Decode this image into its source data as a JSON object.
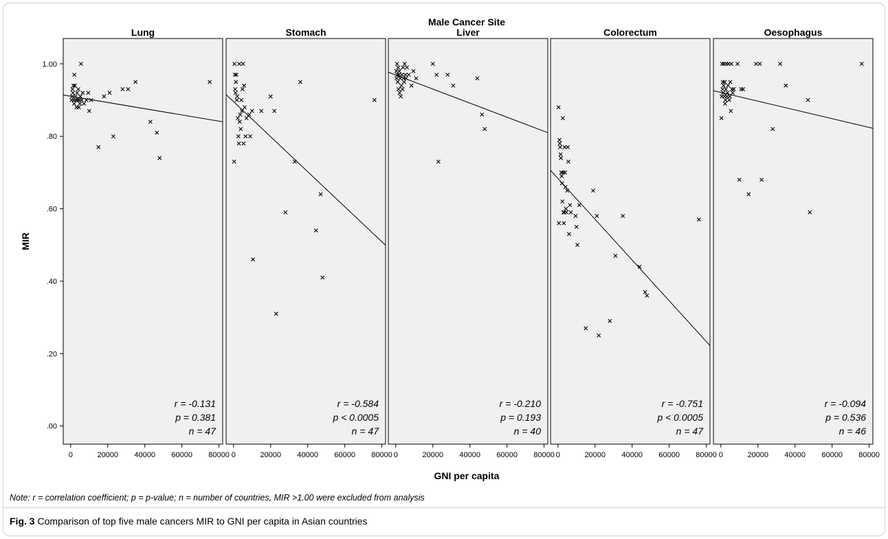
{
  "figure": {
    "label": "Fig. 3",
    "caption": "Comparison of top five male cancers MIR to GNI per capita in Asian countries",
    "note": "Note: r = correlation coefficient; p = p-value; n = number of countries, MIR >1.00 were excluded from analysis"
  },
  "colors": {
    "panel_bg": "#f0f0f0",
    "marker": "#000000",
    "line": "#000000"
  },
  "chart_data": {
    "type": "scatter",
    "title": "Male Cancer Site",
    "xlabel": "GNI per capita",
    "ylabel": "MIR",
    "xlim": [
      -4000,
      82000
    ],
    "ylim": [
      -0.05,
      1.07
    ],
    "x_ticks": [
      0,
      20000,
      40000,
      60000,
      80000
    ],
    "x_tick_labels": [
      "0",
      "20000",
      "40000",
      "60000",
      "80000"
    ],
    "y_ticks": [
      0,
      0.2,
      0.4,
      0.6,
      0.8,
      1.0
    ],
    "y_tick_labels": [
      ".00",
      ".20",
      ".40",
      ".60",
      ".80",
      "1.00"
    ],
    "marker": "x",
    "panels": [
      {
        "name": "Lung",
        "fit_line": [
          [
            -4000,
            0.914
          ],
          [
            82000,
            0.84
          ]
        ],
        "stats": [
          "r = -0.131",
          "p = 0.381",
          "n = 47"
        ],
        "points": [
          [
            500,
            0.9
          ],
          [
            800,
            0.91
          ],
          [
            1000,
            0.93
          ],
          [
            1200,
            0.92
          ],
          [
            1500,
            0.94
          ],
          [
            1700,
            0.9
          ],
          [
            1900,
            0.89
          ],
          [
            2000,
            0.97
          ],
          [
            2300,
            0.94
          ],
          [
            2600,
            0.91
          ],
          [
            2900,
            0.9
          ],
          [
            3200,
            0.88
          ],
          [
            3500,
            0.92
          ],
          [
            3800,
            0.9
          ],
          [
            4100,
            0.93
          ],
          [
            4400,
            0.88
          ],
          [
            4700,
            0.9
          ],
          [
            5000,
            0.89
          ],
          [
            5300,
            0.91
          ],
          [
            5600,
            1.0
          ],
          [
            6000,
            0.9
          ],
          [
            6500,
            0.92
          ],
          [
            7200,
            0.89
          ],
          [
            8500,
            0.9
          ],
          [
            9500,
            0.92
          ],
          [
            10000,
            0.87
          ],
          [
            11000,
            0.9
          ],
          [
            15000,
            0.77
          ],
          [
            18000,
            0.91
          ],
          [
            21000,
            0.92
          ],
          [
            23000,
            0.8
          ],
          [
            28000,
            0.93
          ],
          [
            31000,
            0.93
          ],
          [
            35000,
            0.95
          ],
          [
            43000,
            0.84
          ],
          [
            46500,
            0.81
          ],
          [
            48000,
            0.74
          ],
          [
            75000,
            0.95
          ]
        ]
      },
      {
        "name": "Stomach",
        "fit_line": [
          [
            -4000,
            0.915
          ],
          [
            82000,
            0.499
          ]
        ],
        "stats": [
          "r = -0.584",
          "p < 0.0005",
          "n = 47"
        ],
        "points": [
          [
            300,
            0.73
          ],
          [
            500,
            1.0
          ],
          [
            700,
            0.97
          ],
          [
            900,
            0.93
          ],
          [
            1100,
            0.92
          ],
          [
            1300,
            0.95
          ],
          [
            1500,
            0.97
          ],
          [
            1800,
            0.9
          ],
          [
            2000,
            0.91
          ],
          [
            2300,
            0.85
          ],
          [
            2600,
            0.8
          ],
          [
            2900,
            0.78
          ],
          [
            3100,
            1.0
          ],
          [
            3300,
            0.84
          ],
          [
            3600,
            0.86
          ],
          [
            3900,
            0.82
          ],
          [
            4200,
            0.9
          ],
          [
            4500,
            0.87
          ],
          [
            4800,
            0.93
          ],
          [
            5100,
            1.0
          ],
          [
            5400,
            0.78
          ],
          [
            5700,
            0.94
          ],
          [
            6000,
            0.88
          ],
          [
            6500,
            0.8
          ],
          [
            7000,
            0.85
          ],
          [
            8500,
            0.86
          ],
          [
            9000,
            0.8
          ],
          [
            10000,
            0.87
          ],
          [
            10500,
            0.46
          ],
          [
            15000,
            0.87
          ],
          [
            20000,
            0.91
          ],
          [
            22000,
            0.87
          ],
          [
            23000,
            0.31
          ],
          [
            28000,
            0.59
          ],
          [
            33000,
            0.73
          ],
          [
            36000,
            0.95
          ],
          [
            44500,
            0.54
          ],
          [
            47000,
            0.64
          ],
          [
            48000,
            0.41
          ],
          [
            76000,
            0.9
          ]
        ]
      },
      {
        "name": "Liver",
        "fit_line": [
          [
            -4000,
            0.977
          ],
          [
            82000,
            0.81
          ]
        ],
        "stats": [
          "r = -0.210",
          "p = 0.193",
          "n = 40"
        ],
        "points": [
          [
            300,
            0.98
          ],
          [
            500,
            0.96
          ],
          [
            700,
            1.0
          ],
          [
            900,
            0.97
          ],
          [
            1100,
            0.95
          ],
          [
            1300,
            0.99
          ],
          [
            1500,
            0.93
          ],
          [
            1700,
            0.97
          ],
          [
            1900,
            0.98
          ],
          [
            2100,
            0.92
          ],
          [
            2400,
            0.96
          ],
          [
            2700,
            0.91
          ],
          [
            3000,
            0.94
          ],
          [
            3300,
            0.97
          ],
          [
            3600,
            0.93
          ],
          [
            3900,
            0.99
          ],
          [
            4200,
            0.96
          ],
          [
            4500,
            0.95
          ],
          [
            4800,
            1.0
          ],
          [
            5200,
            0.97
          ],
          [
            5600,
            0.96
          ],
          [
            6000,
            0.99
          ],
          [
            7000,
            0.97
          ],
          [
            8500,
            0.94
          ],
          [
            9500,
            0.98
          ],
          [
            11000,
            0.96
          ],
          [
            20000,
            1.0
          ],
          [
            22000,
            0.97
          ],
          [
            23000,
            0.73
          ],
          [
            28000,
            0.97
          ],
          [
            31000,
            0.94
          ],
          [
            44000,
            0.96
          ],
          [
            46500,
            0.86
          ],
          [
            48000,
            0.82
          ]
        ]
      },
      {
        "name": "Colorectum",
        "fit_line": [
          [
            -4000,
            0.706
          ],
          [
            82000,
            0.222
          ]
        ],
        "stats": [
          "r = -0.751",
          "p < 0.0005",
          "n = 47"
        ],
        "points": [
          [
            300,
            0.88
          ],
          [
            500,
            0.56
          ],
          [
            800,
            0.79
          ],
          [
            1000,
            0.78
          ],
          [
            1200,
            0.77
          ],
          [
            1400,
            0.75
          ],
          [
            1600,
            0.74
          ],
          [
            1800,
            0.7
          ],
          [
            2000,
            0.69
          ],
          [
            2200,
            0.67
          ],
          [
            2400,
            0.62
          ],
          [
            2600,
            0.85
          ],
          [
            2800,
            0.7
          ],
          [
            3000,
            0.59
          ],
          [
            3200,
            0.56
          ],
          [
            3400,
            0.59
          ],
          [
            3600,
            0.77
          ],
          [
            3800,
            0.7
          ],
          [
            4000,
            0.66
          ],
          [
            4300,
            0.6
          ],
          [
            4600,
            0.59
          ],
          [
            5000,
            0.65
          ],
          [
            5300,
            0.77
          ],
          [
            5600,
            0.73
          ],
          [
            6000,
            0.53
          ],
          [
            6500,
            0.61
          ],
          [
            7000,
            0.59
          ],
          [
            9500,
            0.58
          ],
          [
            10000,
            0.55
          ],
          [
            10500,
            0.5
          ],
          [
            11500,
            0.61
          ],
          [
            15000,
            0.27
          ],
          [
            19000,
            0.65
          ],
          [
            21000,
            0.58
          ],
          [
            22000,
            0.25
          ],
          [
            28000,
            0.29
          ],
          [
            31000,
            0.47
          ],
          [
            35000,
            0.58
          ],
          [
            44000,
            0.44
          ],
          [
            47000,
            0.37
          ],
          [
            48000,
            0.36
          ],
          [
            76000,
            0.57
          ]
        ]
      },
      {
        "name": "Oesophagus",
        "fit_line": [
          [
            -4000,
            0.926
          ],
          [
            82000,
            0.822
          ]
        ],
        "stats": [
          "r = -0.094",
          "p = 0.536",
          "n = 46"
        ],
        "points": [
          [
            300,
            0.85
          ],
          [
            500,
            0.91
          ],
          [
            700,
            1.0
          ],
          [
            900,
            0.93
          ],
          [
            1100,
            0.95
          ],
          [
            1300,
            0.92
          ],
          [
            1500,
            0.94
          ],
          [
            1700,
            1.0
          ],
          [
            1900,
            0.91
          ],
          [
            2100,
            0.95
          ],
          [
            2300,
            0.89
          ],
          [
            2500,
            0.9
          ],
          [
            2700,
            0.93
          ],
          [
            3000,
            1.0
          ],
          [
            3300,
            0.91
          ],
          [
            3600,
            0.92
          ],
          [
            3900,
            0.94
          ],
          [
            4200,
            1.0
          ],
          [
            4500,
            0.9
          ],
          [
            4800,
            0.91
          ],
          [
            5100,
            0.95
          ],
          [
            5400,
            0.87
          ],
          [
            5700,
            1.0
          ],
          [
            6000,
            0.93
          ],
          [
            6400,
            0.92
          ],
          [
            7000,
            0.93
          ],
          [
            9000,
            1.0
          ],
          [
            10000,
            0.68
          ],
          [
            11000,
            0.93
          ],
          [
            12000,
            0.93
          ],
          [
            15000,
            0.64
          ],
          [
            19000,
            1.0
          ],
          [
            21000,
            1.0
          ],
          [
            22000,
            0.68
          ],
          [
            28000,
            0.82
          ],
          [
            32000,
            1.0
          ],
          [
            35000,
            0.94
          ],
          [
            47000,
            0.9
          ],
          [
            48000,
            0.59
          ],
          [
            76000,
            1.0
          ]
        ]
      }
    ]
  }
}
